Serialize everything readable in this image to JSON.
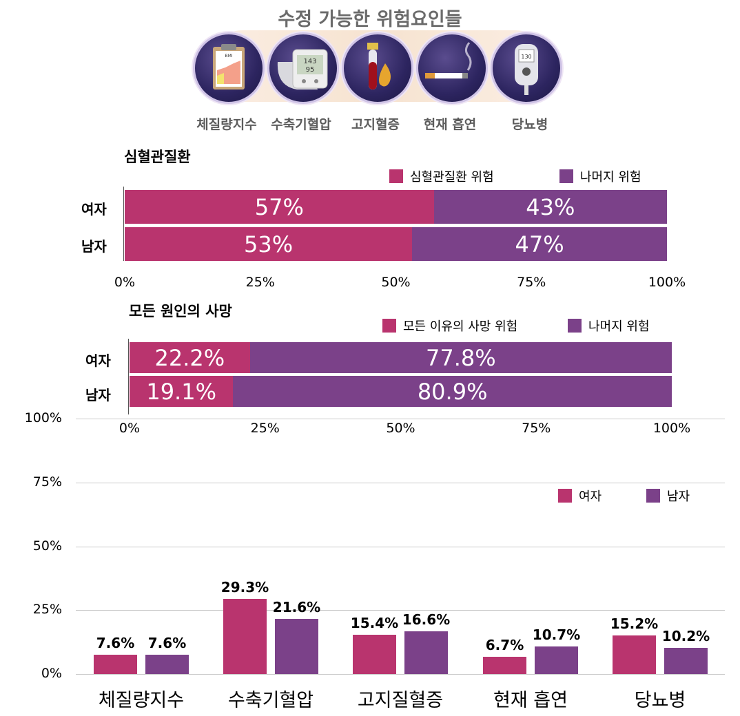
{
  "header": {
    "title": "수정 가능한 위험요인들",
    "icons": [
      {
        "name": "clipboard-bmi-icon",
        "label": "체질량지수",
        "screen_text": "BMI"
      },
      {
        "name": "blood-pressure-monitor-icon",
        "label": "수축기혈압",
        "screen_text": "143 95"
      },
      {
        "name": "blood-tube-icon",
        "label": "고지혈증"
      },
      {
        "name": "cigarette-icon",
        "label": "현재 흡연"
      },
      {
        "name": "glucose-meter-icon",
        "label": "당뇨병",
        "screen_text": "130"
      }
    ]
  },
  "colors": {
    "female": "#b9346e",
    "male": "#7b4189",
    "grid": "#c9c9c9"
  },
  "chart_data": [
    {
      "type": "bar",
      "orientation": "horizontal-stacked",
      "title": "심혈관질환",
      "categories": [
        "여자",
        "남자"
      ],
      "series": [
        {
          "name": "심혈관질환 위험",
          "values": [
            57,
            53
          ],
          "labels": [
            "57%",
            "53%"
          ]
        },
        {
          "name": "나머지 위험",
          "values": [
            43,
            47
          ],
          "labels": [
            "43%",
            "47%"
          ]
        }
      ],
      "xlim": [
        0,
        100
      ],
      "xticks": [
        "0%",
        "25%",
        "50%",
        "75%",
        "100%"
      ],
      "legend": "top-right"
    },
    {
      "type": "bar",
      "orientation": "horizontal-stacked",
      "title": "모든 원인의 사망",
      "categories": [
        "여자",
        "남자"
      ],
      "series": [
        {
          "name": "모든 이유의 사망 위험",
          "values": [
            22.2,
            19.1
          ],
          "labels": [
            "22.2%",
            "19.1%"
          ]
        },
        {
          "name": "나머지 위험",
          "values": [
            77.8,
            80.9
          ],
          "labels": [
            "77.8%",
            "80.9%"
          ]
        }
      ],
      "xlim": [
        0,
        100
      ],
      "xticks": [
        "0%",
        "25%",
        "50%",
        "75%",
        "100%"
      ],
      "legend": "top-right"
    },
    {
      "type": "bar",
      "orientation": "vertical-grouped",
      "categories": [
        "체질량지수",
        "수축기혈압",
        "고지질혈증",
        "현재 흡연",
        "당뇨병"
      ],
      "series": [
        {
          "name": "여자",
          "values": [
            7.6,
            29.3,
            15.4,
            6.7,
            15.2
          ],
          "labels": [
            "7.6%",
            "29.3%",
            "15.4%",
            "6.7%",
            "15.2%"
          ]
        },
        {
          "name": "남자",
          "values": [
            7.6,
            21.6,
            16.6,
            10.7,
            10.2
          ],
          "labels": [
            "7.6%",
            "21.6%",
            "16.6%",
            "10.7%",
            "10.2%"
          ]
        }
      ],
      "ylim": [
        0,
        100
      ],
      "yticks": [
        "0%",
        "25%",
        "50%",
        "75%",
        "100%"
      ],
      "grid": true,
      "legend": "top-right"
    }
  ]
}
